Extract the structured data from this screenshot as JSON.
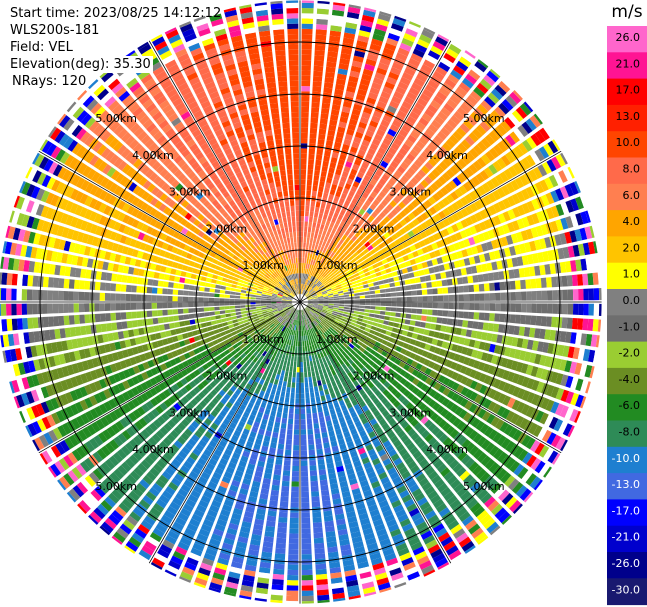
{
  "header": {
    "start_time": "Start time: 2023/08/25 14:12:12",
    "instrument": "WLS200s-181",
    "field": "Field: VEL",
    "elevation": "Elevation(deg): 35.30",
    "nrays": "NRays: 120"
  },
  "chart_data": {
    "type": "ppi",
    "field": "VEL",
    "n_rays": 120,
    "elevation_deg": 35.3,
    "range_rings_km": [
      1.0,
      2.0,
      3.0,
      4.0,
      5.0
    ],
    "ring_labels": [
      "1.00km",
      "2.00km",
      "3.00km",
      "4.00km",
      "5.00km"
    ],
    "colorbar": {
      "unit": "m/s",
      "tick_labels": [
        "26.0",
        "21.0",
        "17.0",
        "13.0",
        "10.0",
        "8.0",
        "6.0",
        "4.0",
        "2.0",
        "1.0",
        "0.0",
        "-1.0",
        "-2.0",
        "-4.0",
        "-6.0",
        "-8.0",
        "-10.0",
        "-13.0",
        "-17.0",
        "-21.0",
        "-26.0",
        "-30.0"
      ],
      "colors": [
        "#ff66cc",
        "#ff1493",
        "#ff0000",
        "#ff2000",
        "#ff4500",
        "#ff6a4a",
        "#ff7f50",
        "#ffa500",
        "#ffc400",
        "#ffff00",
        "#808080",
        "#6e6e6e",
        "#9acd32",
        "#6b8e23",
        "#228b22",
        "#2e8b57",
        "#1e7fd0",
        "#4169e1",
        "#0000ff",
        "#0000cd",
        "#00008b",
        "#191970"
      ]
    },
    "velocity_profile": {
      "azimuth_deg": [
        0,
        30,
        60,
        90,
        120,
        150,
        180,
        210,
        240,
        270,
        300,
        330
      ],
      "outer_velocity_ms": [
        11.5,
        9,
        3,
        0,
        -4,
        -8,
        -10.5,
        -9,
        -5,
        0,
        5,
        9
      ],
      "near_range_velocity_ms": [
        4,
        3,
        2,
        0,
        -2,
        -3,
        -4,
        -3,
        -2,
        0,
        2,
        3
      ]
    },
    "valid_range_km": 5.2,
    "max_range_km": 5.8
  }
}
